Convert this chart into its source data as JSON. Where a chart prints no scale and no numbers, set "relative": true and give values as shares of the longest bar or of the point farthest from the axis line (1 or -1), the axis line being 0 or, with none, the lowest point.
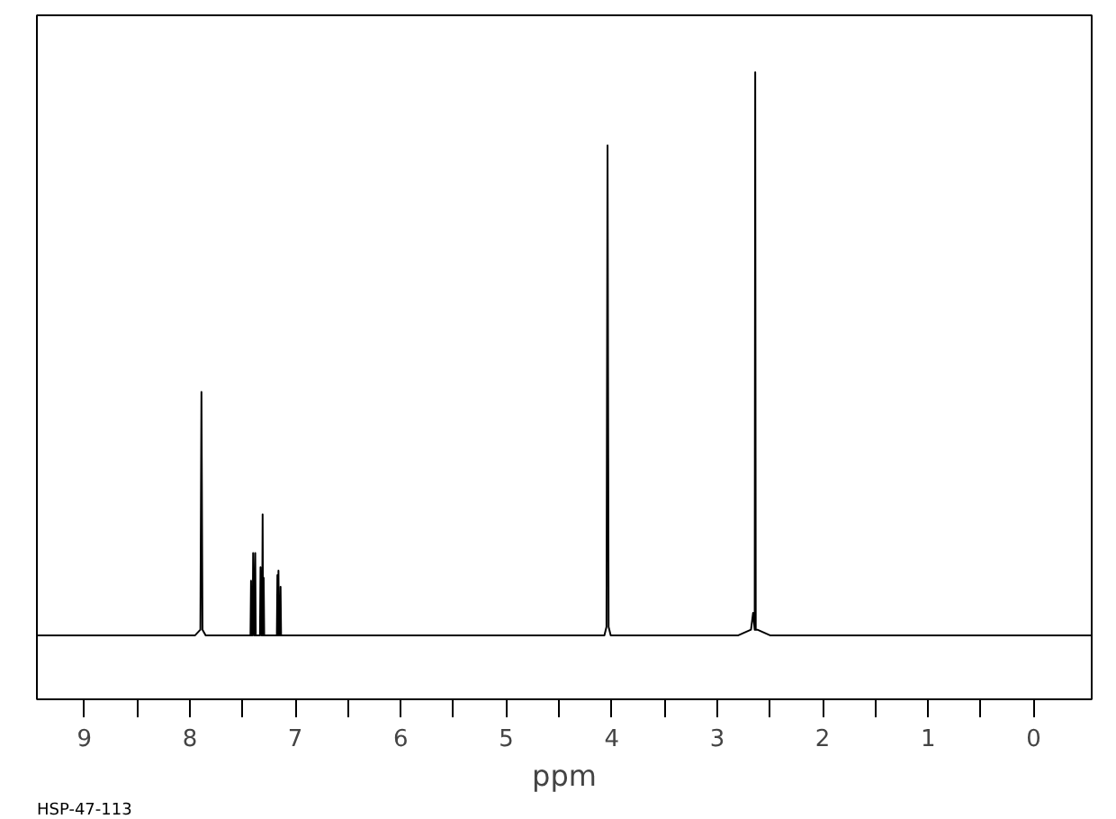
{
  "chart_data": {
    "type": "line",
    "relative": true,
    "xlabel": "ppm",
    "annotations": [
      "HSP-47-113"
    ],
    "x": [
      9.45,
      7.95,
      7.9,
      7.89,
      7.88,
      7.85,
      7.5,
      7.425,
      7.42,
      7.415,
      7.405,
      7.4,
      7.39,
      7.385,
      7.38,
      7.375,
      7.335,
      7.33,
      7.32,
      7.315,
      7.31,
      7.305,
      7.3,
      7.295,
      7.18,
      7.175,
      7.17,
      7.165,
      7.16,
      7.155,
      7.145,
      7.14,
      7.135,
      7.0,
      4.2,
      4.07,
      4.05,
      4.04,
      4.03,
      4.01,
      3.9,
      2.8,
      2.68,
      2.66,
      2.645,
      2.64,
      2.635,
      2.62,
      2.5,
      -0.55
    ],
    "series": [
      {
        "color": "#000000",
        "values": [
          0,
          0,
          0.01,
          0.432,
          0.01,
          0,
          0,
          0,
          0.097,
          0,
          0,
          0.146,
          0,
          0,
          0.146,
          0,
          0,
          0.121,
          0,
          0,
          0.215,
          0,
          0.102,
          0,
          0,
          0,
          0.107,
          0,
          0.115,
          0,
          0,
          0.086,
          0,
          0,
          0,
          0,
          0.015,
          0.87,
          0.015,
          0,
          0,
          0,
          0.01,
          0.04,
          0.01,
          1,
          0.01,
          0.01,
          0,
          0
        ]
      }
    ],
    "xlim": [
      9.45,
      -0.55
    ],
    "xticks": [
      9,
      8,
      7,
      6,
      5,
      4,
      3,
      2,
      1,
      0
    ],
    "grid": false,
    "marker": "none",
    "line_style": "solid"
  }
}
